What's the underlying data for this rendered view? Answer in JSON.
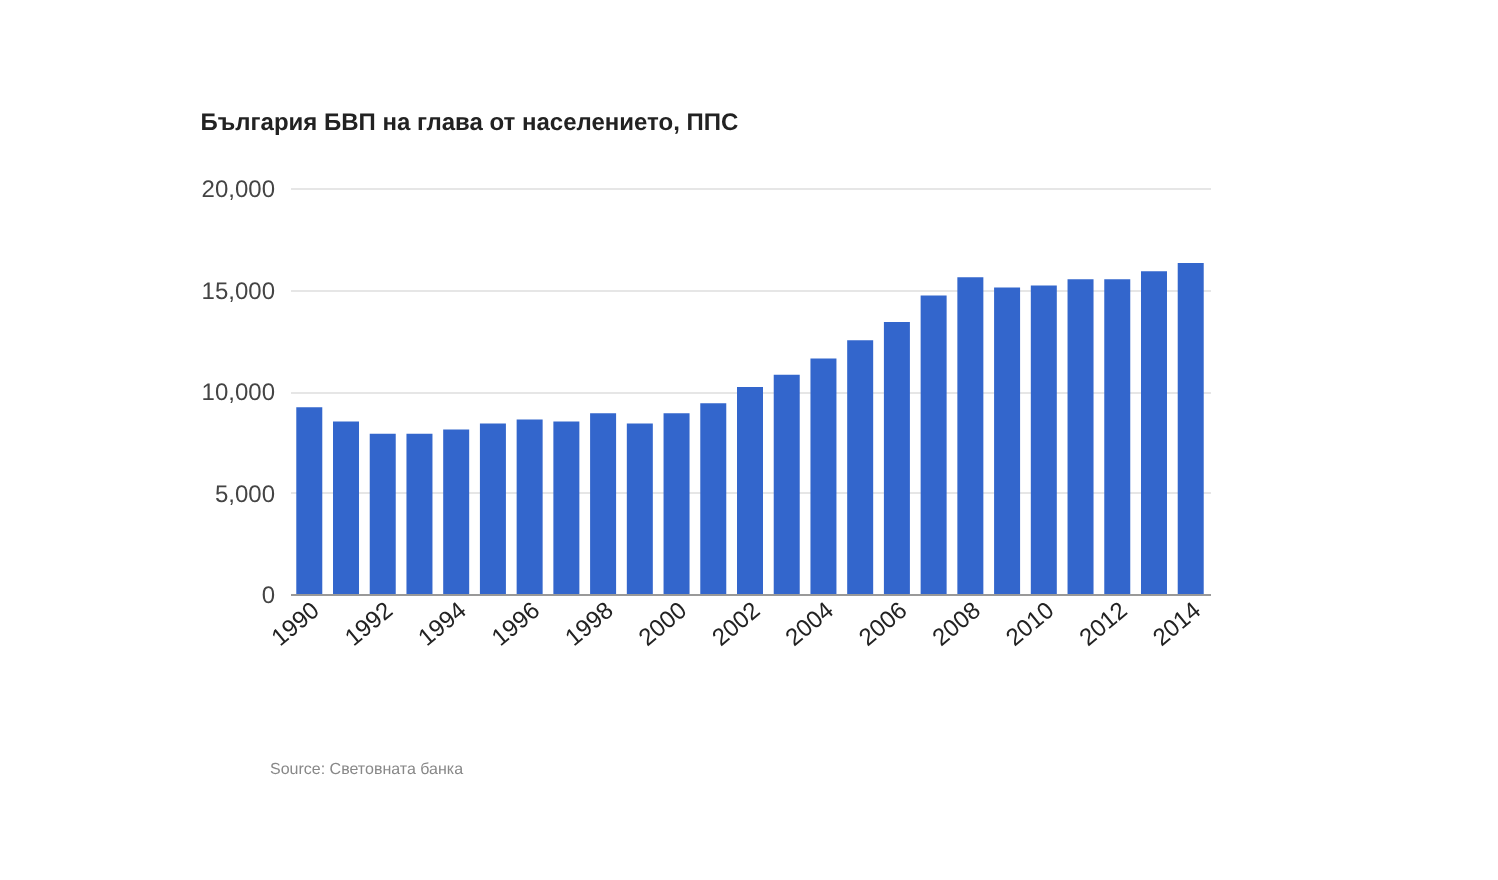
{
  "chart_data": {
    "type": "bar",
    "title": "България БВП на глава от населението, ППС",
    "categories": [
      "1990",
      null,
      "1992",
      null,
      "1994",
      null,
      "1996",
      null,
      "1998",
      null,
      "2000",
      null,
      "2002",
      null,
      "2004",
      null,
      "2006",
      null,
      "2008",
      null,
      "2010",
      null,
      "2012",
      null,
      "2014"
    ],
    "values": [
      9200,
      8500,
      7900,
      7900,
      8100,
      8400,
      8600,
      8500,
      8900,
      8400,
      8900,
      9400,
      10200,
      10800,
      11600,
      12500,
      13400,
      14700,
      15600,
      15100,
      15200,
      15500,
      15500,
      15900,
      16300
    ],
    "color": "#3366cc",
    "ylim": [
      0,
      20000
    ],
    "yticks": [
      0,
      {
        "value": 5000,
        "label": "5,000"
      },
      {
        "value": 10000,
        "label": "10,000"
      },
      {
        "value": 15000,
        "label": "15,000"
      },
      {
        "value": 20000,
        "label": "20,000"
      }
    ],
    "grid": "y",
    "annotations": [
      "Source: Световната банка"
    ]
  }
}
